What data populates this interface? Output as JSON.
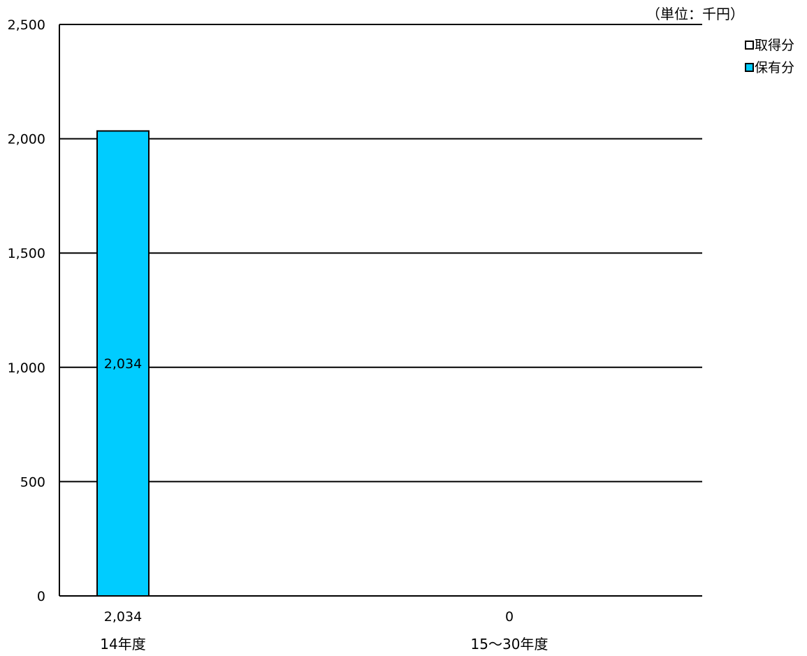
{
  "chart_data": {
    "type": "bar",
    "unit_note": "（単位：千円）",
    "categories": [
      "14年度",
      "15〜30年度"
    ],
    "category_totals": [
      "2,034",
      "0"
    ],
    "series": [
      {
        "name": "取得分",
        "values": [
          0,
          0
        ],
        "color": "#ffffff",
        "data_labels": [
          "",
          ""
        ]
      },
      {
        "name": "保有分",
        "values": [
          2034,
          0
        ],
        "color": "#00ccff",
        "data_labels": [
          "2,034",
          ""
        ]
      }
    ],
    "stacked": true,
    "ylim": [
      0,
      2500
    ],
    "yticks": [
      0,
      500,
      1000,
      1500,
      2000,
      2500
    ],
    "ytick_labels": [
      "0",
      "500",
      "1,000",
      "1,500",
      "2,000",
      "2,500"
    ],
    "grid": true,
    "legend_position": "top-right",
    "xlabel": "",
    "ylabel": ""
  }
}
